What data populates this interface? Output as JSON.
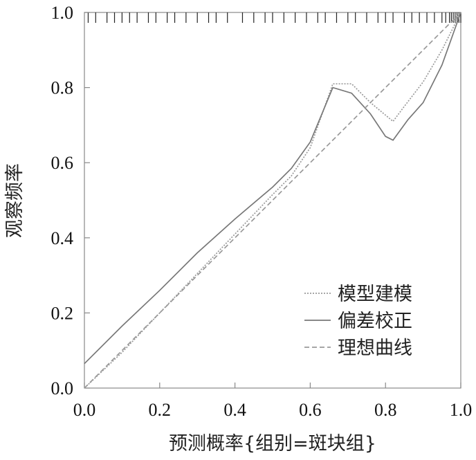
{
  "chart_data": {
    "type": "line",
    "xlabel": "预测概率{组别=斑块组}",
    "ylabel": "观察频率",
    "xlim": [
      0,
      1
    ],
    "ylim": [
      0,
      1
    ],
    "x_ticks": [
      "0.0",
      "0.2",
      "0.4",
      "0.6",
      "0.8",
      "1.0"
    ],
    "y_ticks": [
      "0.0",
      "0.2",
      "0.4",
      "0.6",
      "0.8",
      "1.0"
    ],
    "grid": false,
    "legend_position": "bottom-right",
    "series": [
      {
        "name": "模型建模",
        "style": "dotted",
        "color": "#999999",
        "x": [
          0.0,
          0.1,
          0.2,
          0.3,
          0.4,
          0.5,
          0.55,
          0.6,
          0.66,
          0.71,
          0.76,
          0.82,
          0.85,
          0.9,
          0.95,
          1.0
        ],
        "y": [
          0.0,
          0.095,
          0.2,
          0.305,
          0.41,
          0.515,
          0.565,
          0.64,
          0.81,
          0.81,
          0.76,
          0.71,
          0.75,
          0.815,
          0.9,
          1.0
        ]
      },
      {
        "name": "偏差校正",
        "style": "solid",
        "color": "#777777",
        "x": [
          0.0,
          0.1,
          0.2,
          0.3,
          0.4,
          0.5,
          0.55,
          0.6,
          0.66,
          0.71,
          0.76,
          0.8,
          0.82,
          0.86,
          0.9,
          0.95,
          1.0
        ],
        "y": [
          0.065,
          0.165,
          0.26,
          0.36,
          0.45,
          0.535,
          0.585,
          0.655,
          0.8,
          0.785,
          0.73,
          0.67,
          0.66,
          0.715,
          0.76,
          0.86,
          1.0
        ]
      },
      {
        "name": "理想曲线",
        "style": "dashed",
        "color": "#999999",
        "x": [
          0,
          1
        ],
        "y": [
          0,
          1
        ]
      }
    ],
    "rug": [
      0.01,
      0.03,
      0.06,
      0.08,
      0.1,
      0.12,
      0.14,
      0.17,
      0.19,
      0.22,
      0.24,
      0.27,
      0.3,
      0.33,
      0.35,
      0.38,
      0.42,
      0.45,
      0.48,
      0.5,
      0.53,
      0.56,
      0.59,
      0.62,
      0.64,
      0.67,
      0.7,
      0.72,
      0.75,
      0.78,
      0.8,
      0.82,
      0.85,
      0.87,
      0.89,
      0.91,
      0.93,
      0.95,
      0.96,
      0.97,
      0.975,
      0.98,
      0.985,
      0.99,
      0.995,
      1.0
    ]
  }
}
